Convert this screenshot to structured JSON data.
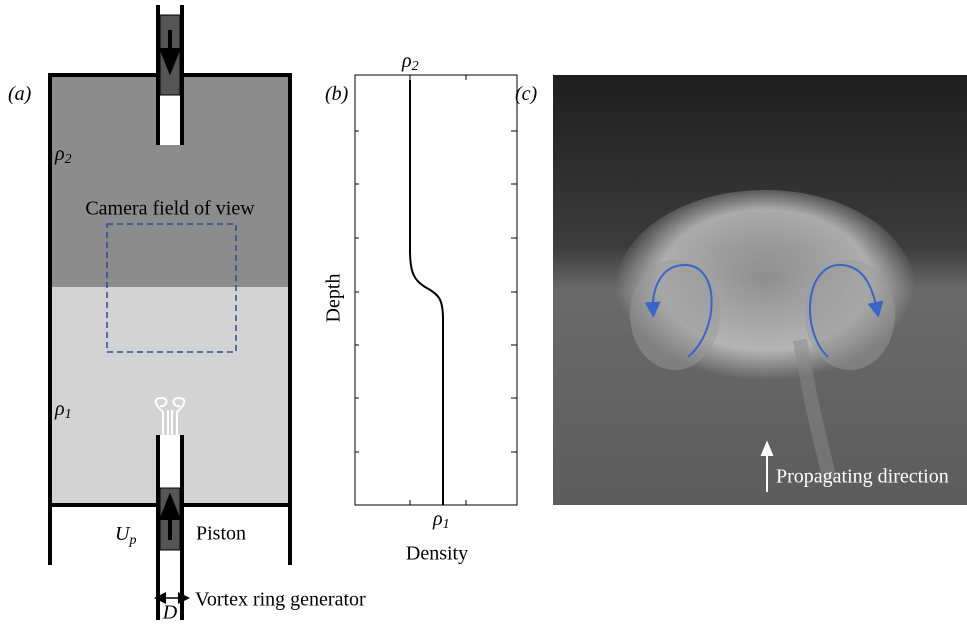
{
  "panel_a": {
    "label": "(a)",
    "rho_top": {
      "symbol": "ρ",
      "subscript": "2"
    },
    "camera": "Camera field of view",
    "rho_bottom": {
      "symbol": "ρ",
      "subscript": "1"
    },
    "velocity": {
      "symbol": "U",
      "subscript": "p"
    },
    "piston": "Piston",
    "diameter": "D",
    "generator": "Vortex ring generator"
  },
  "panel_b": {
    "label": "(b)",
    "rho_top": {
      "symbol": "ρ",
      "subscript": "2"
    },
    "rho_bottom": {
      "symbol": "ρ",
      "subscript": "1"
    },
    "ylabel": "Depth",
    "xlabel": "Density"
  },
  "panel_c": {
    "label": "(c)",
    "annotation": "Propagating direction"
  }
}
